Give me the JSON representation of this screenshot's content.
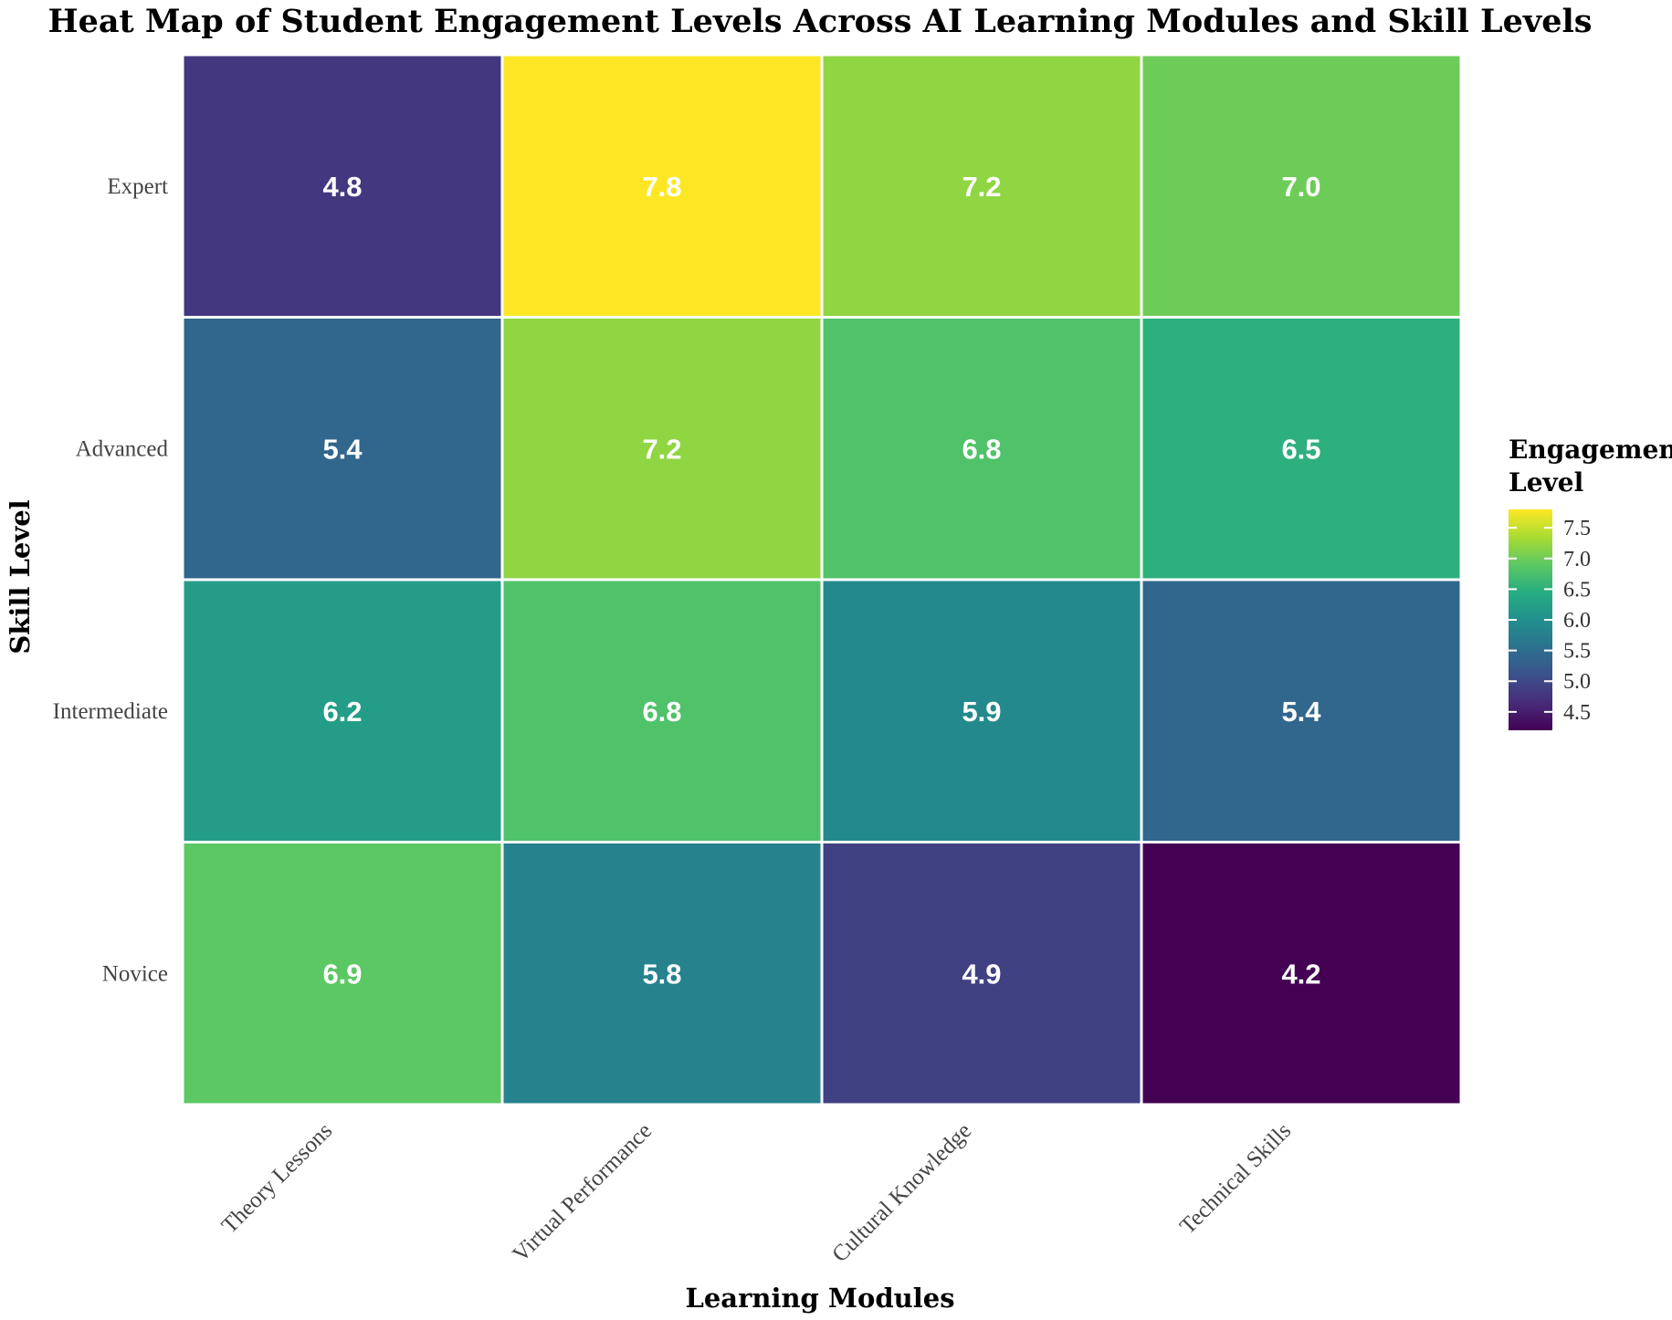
{
  "chart_data": {
    "type": "heatmap",
    "title": "Heat Map of Student Engagement Levels Across AI Learning Modules and Skill Levels",
    "xlabel": "Learning Modules",
    "ylabel": "Skill Level",
    "x_categories": [
      "Theory Lessons",
      "Virtual Performance",
      "Cultural Knowledge",
      "Technical Skills"
    ],
    "y_categories": [
      "Expert",
      "Advanced",
      "Intermediate",
      "Novice"
    ],
    "values": [
      [
        4.8,
        7.8,
        7.2,
        7.0
      ],
      [
        5.4,
        7.2,
        6.8,
        6.5
      ],
      [
        6.2,
        6.8,
        5.9,
        5.4
      ],
      [
        6.9,
        5.8,
        4.9,
        4.2
      ]
    ],
    "colorscale": "viridis",
    "color_range": [
      4.2,
      7.8
    ],
    "legend": {
      "title_line1": "Engagement",
      "title_line2": "Level",
      "ticks": [
        "7.5",
        "7.0",
        "6.5",
        "6.0",
        "5.5",
        "5.0",
        "4.5"
      ],
      "placement": "right"
    }
  }
}
